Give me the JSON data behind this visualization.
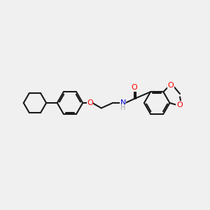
{
  "background_color": "#f0f0f0",
  "bond_color": "#1a1a1a",
  "bond_width": 1.5,
  "atom_colors": {
    "O": "#ff0000",
    "N": "#0000cc",
    "H": "#aaaaaa",
    "C": "#1a1a1a"
  },
  "figsize": [
    3.0,
    3.0
  ],
  "dpi": 100
}
